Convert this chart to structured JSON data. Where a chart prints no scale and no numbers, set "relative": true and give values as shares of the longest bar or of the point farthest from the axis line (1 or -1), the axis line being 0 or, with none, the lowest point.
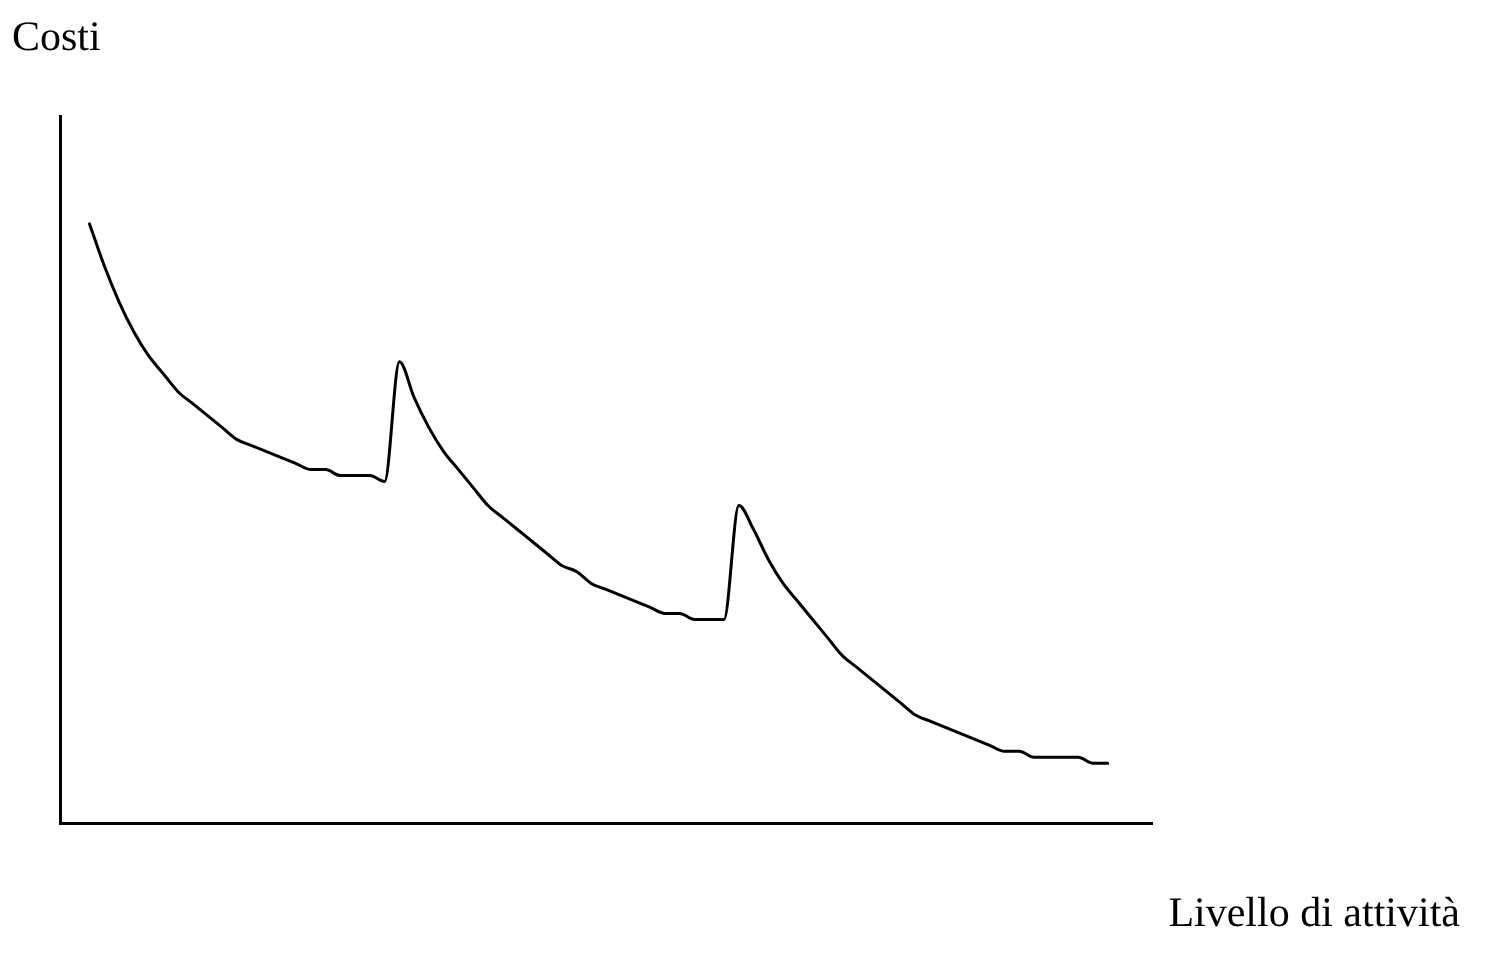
{
  "chart_data": {
    "type": "line",
    "relative": true,
    "ylabel": "Costi",
    "xlabel": "Livello di attività",
    "grid": false,
    "legend": false,
    "marker": "none",
    "line_style": "solid",
    "categories": [
      null,
      null,
      null,
      null,
      null,
      null,
      null,
      null,
      null,
      null,
      null,
      null,
      null,
      null,
      null,
      null,
      null,
      null,
      null,
      null,
      null,
      null,
      null,
      null,
      null,
      null,
      null,
      null,
      null,
      null,
      null,
      null,
      null,
      null,
      null,
      null,
      null,
      null,
      null,
      null,
      null,
      null,
      null,
      null,
      null,
      null,
      null,
      null,
      null,
      null,
      null,
      null,
      null,
      null,
      null,
      null,
      null,
      null,
      null,
      null,
      null,
      null,
      null,
      null,
      null,
      null,
      null,
      null,
      null,
      null,
      null,
      null,
      null,
      null,
      null
    ],
    "series": [
      {
        "color": "#000000",
        "values": [
          null,
          null,
          1.0,
          0.93,
          0.87,
          0.82,
          0.78,
          0.75,
          0.72,
          0.7,
          0.68,
          0.66,
          0.64,
          0.63,
          0.62,
          0.61,
          0.6,
          0.59,
          0.59,
          0.58,
          0.58,
          0.58,
          0.57,
          0.77,
          0.71,
          0.66,
          0.62,
          0.59,
          0.56,
          0.53,
          0.51,
          0.49,
          0.47,
          0.45,
          0.43,
          0.42,
          0.4,
          0.39,
          0.38,
          0.37,
          0.36,
          0.35,
          0.35,
          0.34,
          0.34,
          0.34,
          0.53,
          0.49,
          0.44,
          0.4,
          0.37,
          0.34,
          0.31,
          0.28,
          0.26,
          0.24,
          0.22,
          0.2,
          0.18,
          0.17,
          0.16,
          0.15,
          0.14,
          0.13,
          0.12,
          0.12,
          0.11,
          0.11,
          0.11,
          0.11,
          0.1,
          0.1,
          null,
          null,
          null
        ]
      }
    ]
  }
}
